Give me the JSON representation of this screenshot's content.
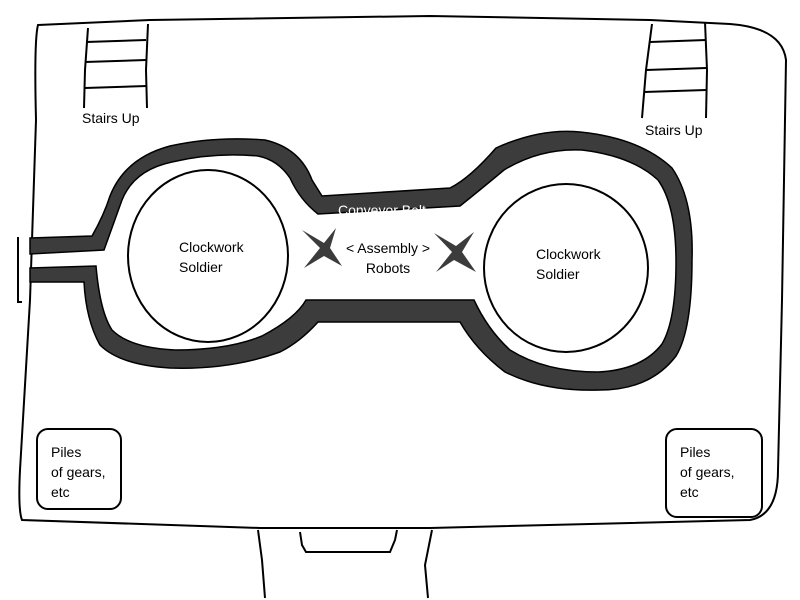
{
  "map": {
    "colors": {
      "ink": "#000000",
      "belt": "#3c3c3c",
      "paper": "#ffffff"
    },
    "labels": {
      "stairs_left": "Stairs Up",
      "stairs_right": "Stairs Up",
      "conveyor": "Conveyor Belt",
      "assembly": "< Assembly >\nRobots",
      "soldier_left": "Clockwork\nSoldier",
      "soldier_right": "Clockwork\nSoldier",
      "gears_left": "Piles\nof gears,\netc",
      "gears_right": "Piles\nof gears,\netc"
    },
    "icons": [
      "stairs-icon",
      "stairs-icon",
      "assembly-robot-icon",
      "assembly-robot-icon"
    ]
  }
}
